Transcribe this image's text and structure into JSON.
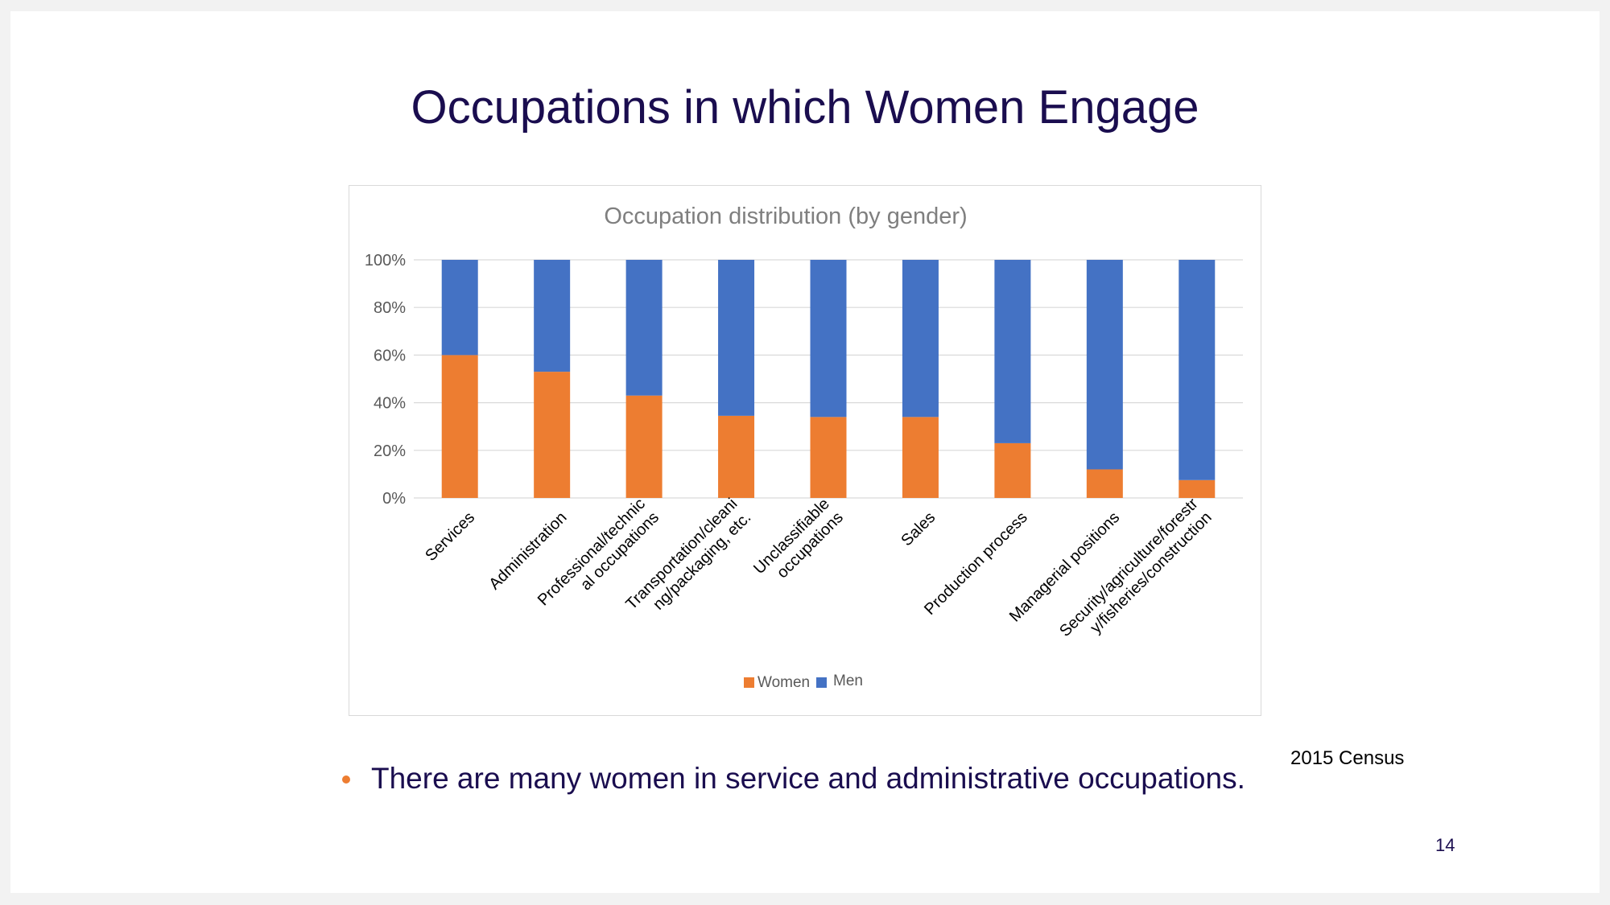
{
  "slide": {
    "title": "Occupations in which Women Engage",
    "bullet": "There are many women in service and administrative occupations.",
    "source_note": "2015 Census",
    "page_number": "14"
  },
  "colors": {
    "women": "#ed7d31",
    "men": "#4472c4",
    "title": "#1a0d4f",
    "bullet_dot": "#ed7d31"
  },
  "chart_data": {
    "type": "bar",
    "stacked": "percent",
    "title": "Occupation distribution (by gender)",
    "categories": [
      [
        "Services"
      ],
      [
        "Administration"
      ],
      [
        "Professional/technic",
        "al occupations"
      ],
      [
        "Transportation/cleani",
        "ng/packaging, etc."
      ],
      [
        "Unclassifiable",
        "occupations"
      ],
      [
        "Sales"
      ],
      [
        "Production process"
      ],
      [
        "Managerial positions"
      ],
      [
        "Security/agriculture/forestr",
        "y/fisheries/construction"
      ]
    ],
    "series": [
      {
        "name": "Women",
        "values": [
          60,
          53,
          43,
          34.5,
          34,
          34,
          23,
          12,
          7.5
        ]
      },
      {
        "name": "Men",
        "values": [
          40,
          47,
          57,
          65.5,
          66,
          66,
          77,
          88,
          92.5
        ]
      }
    ],
    "ylim": [
      0,
      100
    ],
    "yticks": [
      "0%",
      "20%",
      "40%",
      "60%",
      "80%",
      "100%"
    ],
    "grid": true,
    "legend": "bottom"
  }
}
